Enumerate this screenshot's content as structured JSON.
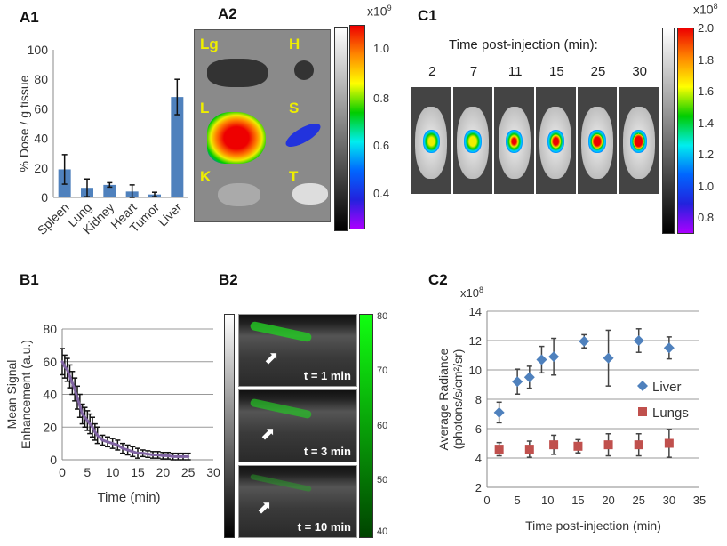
{
  "panels": {
    "A1": "A1",
    "A2": "A2",
    "B1": "B1",
    "B2": "B2",
    "C1": "C1",
    "C2": "C2"
  },
  "a2": {
    "organs": [
      "Lg",
      "H",
      "L",
      "S",
      "K",
      "T"
    ],
    "scale_exp": "x10",
    "scale_pow": "9",
    "ticks": [
      "1.0",
      "0.8",
      "0.6",
      "0.4"
    ]
  },
  "c1": {
    "title": "Time post-injection (min):",
    "times": [
      "2",
      "7",
      "11",
      "15",
      "25",
      "30"
    ],
    "scale_exp": "x10",
    "scale_pow": "8",
    "ticks": [
      "2.0",
      "1.8",
      "1.6",
      "1.4",
      "1.2",
      "1.0",
      "0.8"
    ]
  },
  "b2": {
    "frames": [
      "t = 1 min",
      "t = 3 min",
      "t = 10 min"
    ],
    "ticks": [
      "80",
      "70",
      "60",
      "50",
      "40"
    ],
    "overlay_color": "#22dd22"
  },
  "chart_data": [
    {
      "id": "A1",
      "type": "bar",
      "categories": [
        "Spleen",
        "Lung",
        "Kidney",
        "Heart",
        "Tumor",
        "Liver"
      ],
      "values": [
        19,
        6.5,
        8.5,
        4,
        2,
        68
      ],
      "errors": [
        10,
        6,
        1.5,
        4.5,
        1.5,
        12
      ],
      "ylabel": "% Dose / g tissue",
      "ylim": [
        0,
        100
      ],
      "yticks": [
        0,
        20,
        40,
        60,
        80,
        100
      ],
      "color": "#4f81bd",
      "grid": false
    },
    {
      "id": "B1",
      "type": "line",
      "xlabel": "Time (min)",
      "ylabel": [
        "Mean Signal",
        "Enhancement (a.u.)"
      ],
      "xlim": [
        0,
        30
      ],
      "ylim": [
        0,
        80
      ],
      "xticks": [
        0,
        5,
        10,
        15,
        20,
        25,
        30
      ],
      "yticks": [
        0,
        20,
        40,
        60,
        80
      ],
      "grid": true,
      "color": "#8064a2",
      "x": [
        0,
        0.5,
        1,
        1.5,
        2,
        2.5,
        3,
        3.5,
        4,
        4.5,
        5,
        5.5,
        6,
        6.5,
        7,
        8,
        9,
        10,
        11,
        12,
        13,
        14,
        15,
        16,
        17,
        18,
        19,
        20,
        21,
        22,
        23,
        24,
        25
      ],
      "y": [
        60,
        57,
        55,
        51,
        47,
        43,
        38,
        33,
        28,
        26,
        24,
        22,
        20,
        17,
        15,
        12,
        11,
        10,
        9,
        7,
        6,
        5,
        4,
        4,
        3.5,
        3,
        3,
        2.5,
        2.5,
        2,
        2,
        2,
        2
      ],
      "errors": [
        8,
        7,
        7,
        7,
        7,
        7,
        7,
        7,
        6,
        6,
        6,
        6,
        6,
        5,
        5,
        3,
        3,
        3,
        3,
        3,
        3,
        3,
        3,
        2,
        2,
        2,
        2,
        2,
        2,
        2,
        2,
        2,
        2
      ]
    },
    {
      "id": "C2",
      "type": "scatter",
      "xlabel": "Time post-injection (min)",
      "ylabel": [
        "Average Radiance",
        "(photons/s/cm²/sr)"
      ],
      "yunit": "x10",
      "yunit_pow": "8",
      "xlim": [
        0,
        35
      ],
      "ylim": [
        2,
        14
      ],
      "xticks": [
        0,
        5,
        10,
        15,
        20,
        25,
        30,
        35
      ],
      "yticks": [
        2,
        4,
        6,
        8,
        10,
        12,
        14
      ],
      "grid": true,
      "legend": "right",
      "series": [
        {
          "name": "Liver",
          "marker": "diamond",
          "color": "#4f81bd",
          "x": [
            2,
            5,
            7,
            9,
            11,
            16,
            20,
            25,
            30
          ],
          "y": [
            7.1,
            9.2,
            9.5,
            10.7,
            10.9,
            11.95,
            10.8,
            12.0,
            11.5
          ],
          "errors": [
            0.7,
            0.85,
            0.75,
            0.9,
            1.25,
            0.45,
            1.9,
            0.8,
            0.75
          ]
        },
        {
          "name": "Lungs",
          "marker": "square",
          "color": "#c0504d",
          "x": [
            2,
            7,
            11,
            15,
            20,
            25,
            30
          ],
          "y": [
            4.6,
            4.6,
            4.9,
            4.8,
            4.9,
            4.9,
            5.0
          ],
          "errors": [
            0.45,
            0.55,
            0.65,
            0.45,
            0.75,
            0.75,
            0.95
          ]
        }
      ]
    }
  ]
}
